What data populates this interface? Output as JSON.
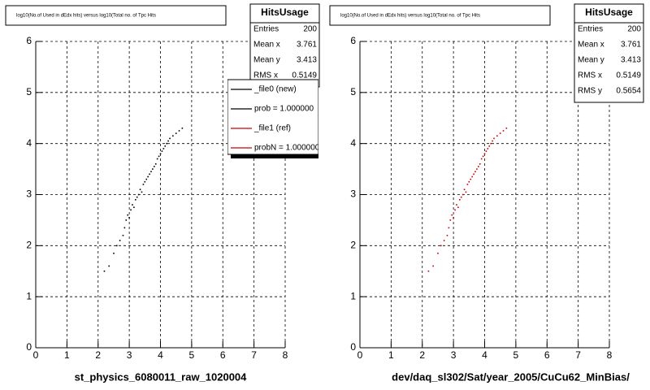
{
  "chart_data": [
    {
      "type": "scatter",
      "title": "log10(No.of Used in dEdx hits) versus log10(Total no. of Tpc Hits",
      "xlabel": "st_physics_6080011_raw_1020004",
      "xlim": [
        0,
        8
      ],
      "ylim": [
        0,
        6
      ],
      "xticks": [
        0,
        1,
        2,
        3,
        4,
        5,
        6,
        7,
        8
      ],
      "yticks": [
        0,
        1,
        2,
        3,
        4,
        5,
        6
      ],
      "grid": true,
      "series": [
        {
          "color": "#000000",
          "x": [
            2.2,
            2.35,
            2.5,
            2.6,
            2.7,
            2.8,
            2.85,
            2.9,
            2.95,
            3.0,
            3.05,
            3.1,
            3.15,
            3.2,
            3.25,
            3.3,
            3.35,
            3.4,
            3.45,
            3.5,
            3.55,
            3.6,
            3.65,
            3.7,
            3.75,
            3.8,
            3.85,
            3.9,
            3.95,
            4.0,
            4.05,
            4.1,
            4.15,
            4.2,
            4.25,
            4.3,
            4.4,
            4.5,
            4.6,
            4.7
          ],
          "y": [
            1.5,
            1.6,
            1.85,
            2.0,
            2.1,
            2.2,
            2.35,
            2.5,
            2.6,
            2.55,
            2.7,
            2.8,
            2.75,
            2.9,
            2.95,
            3.0,
            3.1,
            3.05,
            3.2,
            3.25,
            3.3,
            3.35,
            3.4,
            3.45,
            3.5,
            3.55,
            3.6,
            3.7,
            3.75,
            3.8,
            3.85,
            3.9,
            3.95,
            4.0,
            4.05,
            4.1,
            4.15,
            4.2,
            4.25,
            4.3
          ]
        }
      ],
      "stats": {
        "title": "HitsUsage",
        "rows": [
          [
            "Entries",
            200
          ],
          [
            "Mean x",
            3.761
          ],
          [
            "Mean y",
            3.413
          ],
          [
            "RMS x",
            0.5149
          ]
        ]
      },
      "legend": [
        {
          "label": "_file0 (new)",
          "color": "#000000"
        },
        {
          "label": "prob = 1.000000",
          "color": "#000000"
        },
        {
          "label": "_file1 (ref)",
          "color": "#cc0000"
        },
        {
          "label": "probN = 1.000000",
          "color": "#cc0000"
        }
      ]
    },
    {
      "type": "scatter",
      "title": "log10(No.of Used in dEdx hits) versus log10(Total no. of Tpc Hits",
      "xlabel": "dev/daq_sl302/Sat/year_2005/CuCu62_MinBias/",
      "xlim": [
        0,
        8
      ],
      "ylim": [
        0,
        6
      ],
      "xticks": [
        0,
        1,
        2,
        3,
        4,
        5,
        6,
        7,
        8
      ],
      "yticks": [
        0,
        1,
        2,
        3,
        4,
        5,
        6
      ],
      "grid": true,
      "series": [
        {
          "color": "#cc0000",
          "x": [
            2.2,
            2.35,
            2.5,
            2.6,
            2.7,
            2.8,
            2.85,
            2.9,
            2.95,
            3.0,
            3.05,
            3.1,
            3.15,
            3.2,
            3.25,
            3.3,
            3.35,
            3.4,
            3.45,
            3.5,
            3.55,
            3.6,
            3.65,
            3.7,
            3.75,
            3.8,
            3.85,
            3.9,
            3.95,
            4.0,
            4.05,
            4.1,
            4.15,
            4.2,
            4.25,
            4.3,
            4.4,
            4.5,
            4.6,
            4.7
          ],
          "y": [
            1.5,
            1.6,
            1.85,
            2.0,
            2.1,
            2.2,
            2.35,
            2.5,
            2.6,
            2.55,
            2.7,
            2.8,
            2.75,
            2.9,
            2.95,
            3.0,
            3.1,
            3.05,
            3.2,
            3.25,
            3.3,
            3.35,
            3.4,
            3.45,
            3.5,
            3.55,
            3.6,
            3.7,
            3.75,
            3.8,
            3.85,
            3.9,
            3.95,
            4.0,
            4.05,
            4.1,
            4.15,
            4.2,
            4.25,
            4.3
          ]
        }
      ],
      "stats": {
        "title": "HitsUsage",
        "rows": [
          [
            "Entries",
            200
          ],
          [
            "Mean x",
            3.761
          ],
          [
            "Mean y",
            3.413
          ],
          [
            "RMS x",
            0.5149
          ],
          [
            "RMS y",
            0.5654
          ]
        ]
      }
    }
  ]
}
